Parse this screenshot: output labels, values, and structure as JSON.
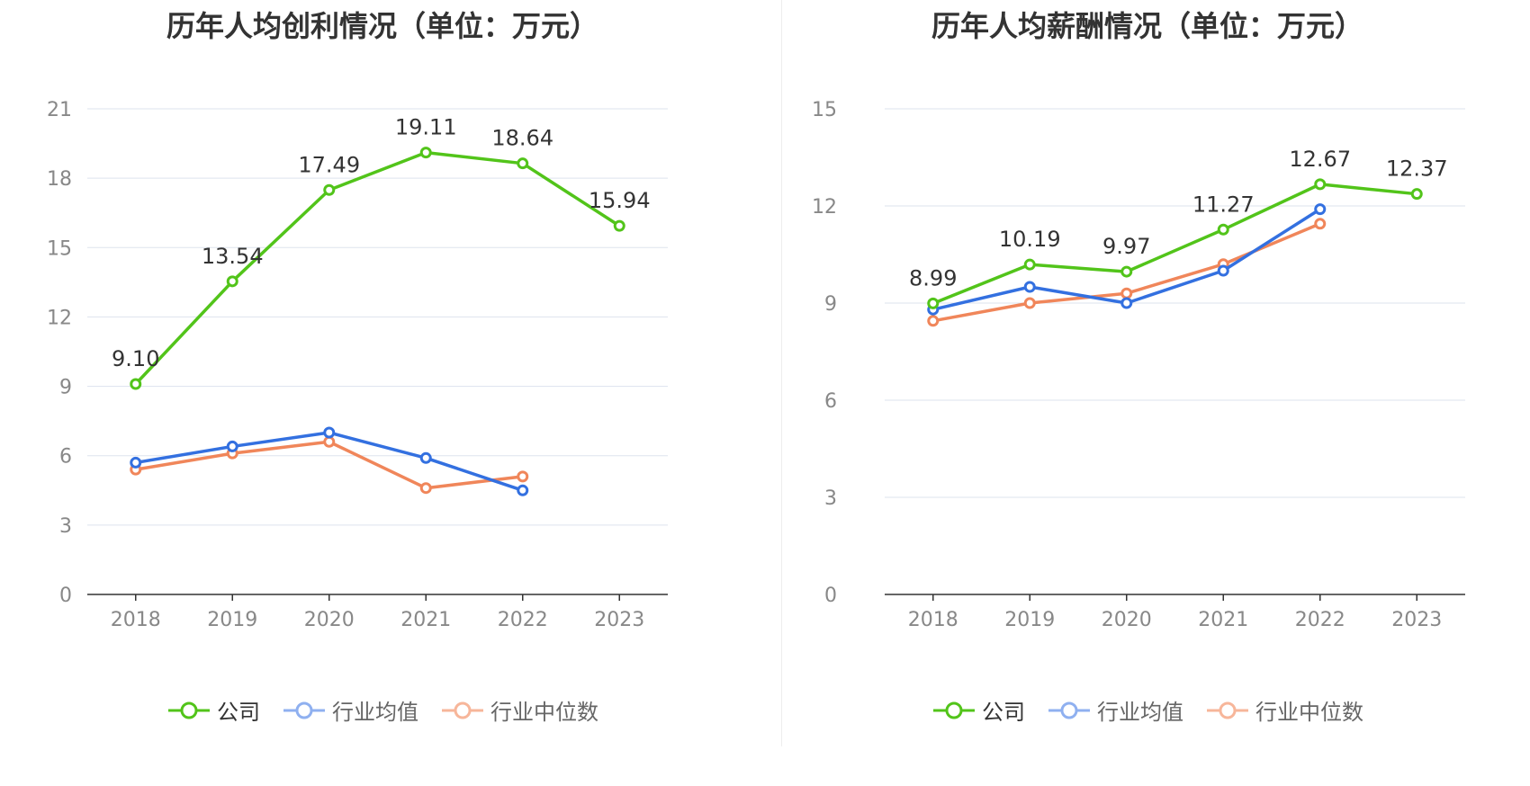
{
  "chart_data": [
    {
      "type": "line",
      "title": "历年人均创利情况（单位：万元）",
      "categories": [
        "2018",
        "2019",
        "2020",
        "2021",
        "2022",
        "2023"
      ],
      "ylim": [
        0,
        21
      ],
      "yticks": [
        "0",
        "3",
        "6",
        "9",
        "12",
        "15",
        "18",
        "21"
      ],
      "grid": true,
      "legend_position": "bottom",
      "series": [
        {
          "name": "公司",
          "color": "#52c41a",
          "values": [
            9.1,
            13.54,
            17.49,
            19.11,
            18.64,
            15.94
          ],
          "labels": [
            "9.10",
            "13.54",
            "17.49",
            "19.11",
            "18.64",
            "15.94"
          ]
        },
        {
          "name": "行业均值",
          "color": "#3370e0",
          "values": [
            5.7,
            6.4,
            7.0,
            5.9,
            4.5,
            null
          ]
        },
        {
          "name": "行业中位数",
          "color": "#f0865a",
          "values": [
            5.4,
            6.1,
            6.6,
            4.6,
            5.1,
            null
          ]
        }
      ]
    },
    {
      "type": "line",
      "title": "历年人均薪酬情况（单位：万元）",
      "categories": [
        "2018",
        "2019",
        "2020",
        "2021",
        "2022",
        "2023"
      ],
      "ylim": [
        0,
        15
      ],
      "yticks": [
        "0",
        "3",
        "6",
        "9",
        "12",
        "15"
      ],
      "grid": true,
      "legend_position": "bottom",
      "series": [
        {
          "name": "公司",
          "color": "#52c41a",
          "values": [
            8.99,
            10.19,
            9.97,
            11.27,
            12.67,
            12.37
          ],
          "labels": [
            "8.99",
            "10.19",
            "9.97",
            "11.27",
            "12.67",
            "12.37"
          ]
        },
        {
          "name": "行业均值",
          "color": "#3370e0",
          "values": [
            8.8,
            9.5,
            9.0,
            10.0,
            11.9,
            null
          ]
        },
        {
          "name": "行业中位数",
          "color": "#f0865a",
          "values": [
            8.45,
            9.0,
            9.3,
            10.2,
            11.45,
            null
          ]
        }
      ]
    }
  ],
  "legend": {
    "items": [
      {
        "label": "公司",
        "color": "#52c41a"
      },
      {
        "label": "行业均值",
        "color": "#8fb0f0"
      },
      {
        "label": "行业中位数",
        "color": "#f7b69a"
      }
    ]
  }
}
